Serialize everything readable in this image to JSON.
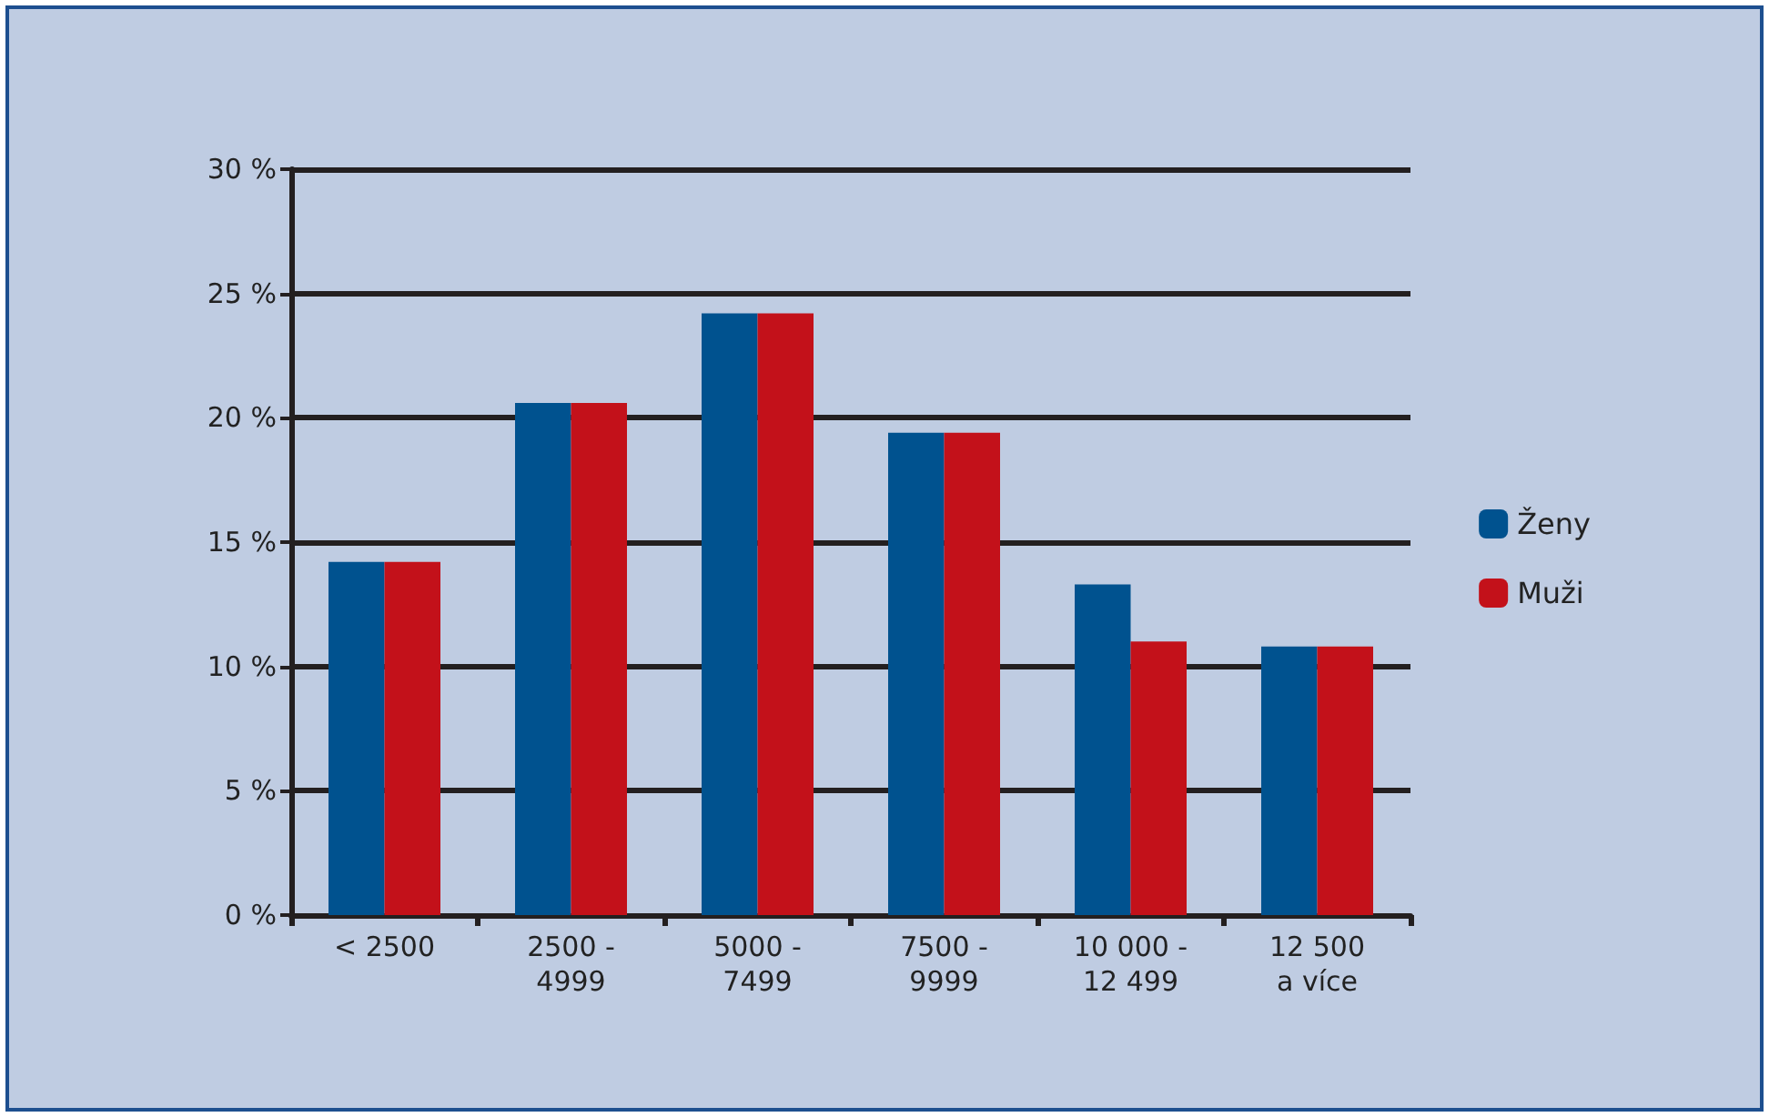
{
  "chart_data": {
    "type": "bar",
    "categories": [
      "< 2500",
      "2500 -\n4999",
      "5000 -\n7499",
      "7500 -\n9999",
      "10 000 -\n12 499",
      "12 500\na více"
    ],
    "series": [
      {
        "name": "Ženy",
        "color": "#00528f",
        "values": [
          14.2,
          20.6,
          24.2,
          19.4,
          13.3,
          10.8
        ]
      },
      {
        "name": "Muži",
        "color": "#c3111a",
        "values": [
          14.2,
          20.6,
          24.2,
          19.4,
          11.0,
          10.8
        ]
      }
    ],
    "ylim": [
      0,
      30
    ],
    "yticks": [
      {
        "value": 0,
        "label": "0 %"
      },
      {
        "value": 5,
        "label": "5 %"
      },
      {
        "value": 10,
        "label": "10 %"
      },
      {
        "value": 15,
        "label": "15 %"
      },
      {
        "value": 20,
        "label": "20 %"
      },
      {
        "value": 25,
        "label": "25 %"
      },
      {
        "value": 30,
        "label": "30 %"
      }
    ],
    "grid": "y",
    "legend": "right"
  }
}
